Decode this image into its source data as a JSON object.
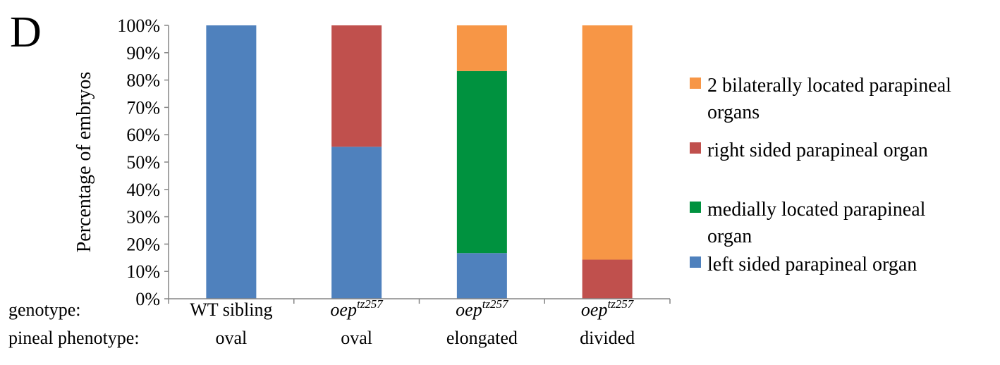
{
  "panel_label": "D",
  "colors": {
    "left": "#4F81BD",
    "right": "#C0504D",
    "medial": "#00923F",
    "bilateral": "#F79646",
    "axis": "#868686"
  },
  "chart_data": {
    "type": "bar",
    "stacked": true,
    "percent": true,
    "ylabel": "Percentage of embryos",
    "ylim": [
      0,
      100
    ],
    "yticks": [
      "0%",
      "10%",
      "20%",
      "30%",
      "40%",
      "50%",
      "60%",
      "70%",
      "80%",
      "90%",
      "100%"
    ],
    "row_labels": [
      "genotype:",
      "pineal phenotype:"
    ],
    "categories": [
      {
        "genotype_base": "WT sibling",
        "genotype_sup": "",
        "genotype_italic": false,
        "phenotype": "oval"
      },
      {
        "genotype_base": "oep",
        "genotype_sup": "tz257",
        "genotype_italic": true,
        "phenotype": "oval"
      },
      {
        "genotype_base": "oep",
        "genotype_sup": "tz257",
        "genotype_italic": true,
        "phenotype": "elongated"
      },
      {
        "genotype_base": "oep",
        "genotype_sup": "tz257",
        "genotype_italic": true,
        "phenotype": "divided"
      }
    ],
    "series": [
      {
        "key": "left",
        "name": "left sided parapineal organ",
        "color": "#4F81BD",
        "values": [
          100,
          55.6,
          16.7,
          0
        ]
      },
      {
        "key": "right",
        "name": "right sided parapineal organ",
        "color": "#C0504D",
        "values": [
          0,
          44.4,
          0,
          14.3
        ]
      },
      {
        "key": "medial",
        "name": "medially located parapineal organ",
        "color": "#00923F",
        "values": [
          0,
          0,
          66.6,
          0
        ]
      },
      {
        "key": "bilateral",
        "name": "2 bilaterally located parapineal organs",
        "color": "#F79646",
        "values": [
          0,
          0,
          16.7,
          85.7
        ]
      }
    ],
    "legend": {
      "position": "right",
      "order": [
        "bilateral",
        "right",
        "medial",
        "left"
      ],
      "lines": {
        "bilateral": [
          "2 bilaterally located parapineal",
          "organs"
        ],
        "right": [
          "right sided parapineal organ"
        ],
        "medial": [
          "medially located parapineal",
          "organ"
        ],
        "left": [
          "left sided parapineal organ"
        ]
      }
    },
    "grid": false
  }
}
